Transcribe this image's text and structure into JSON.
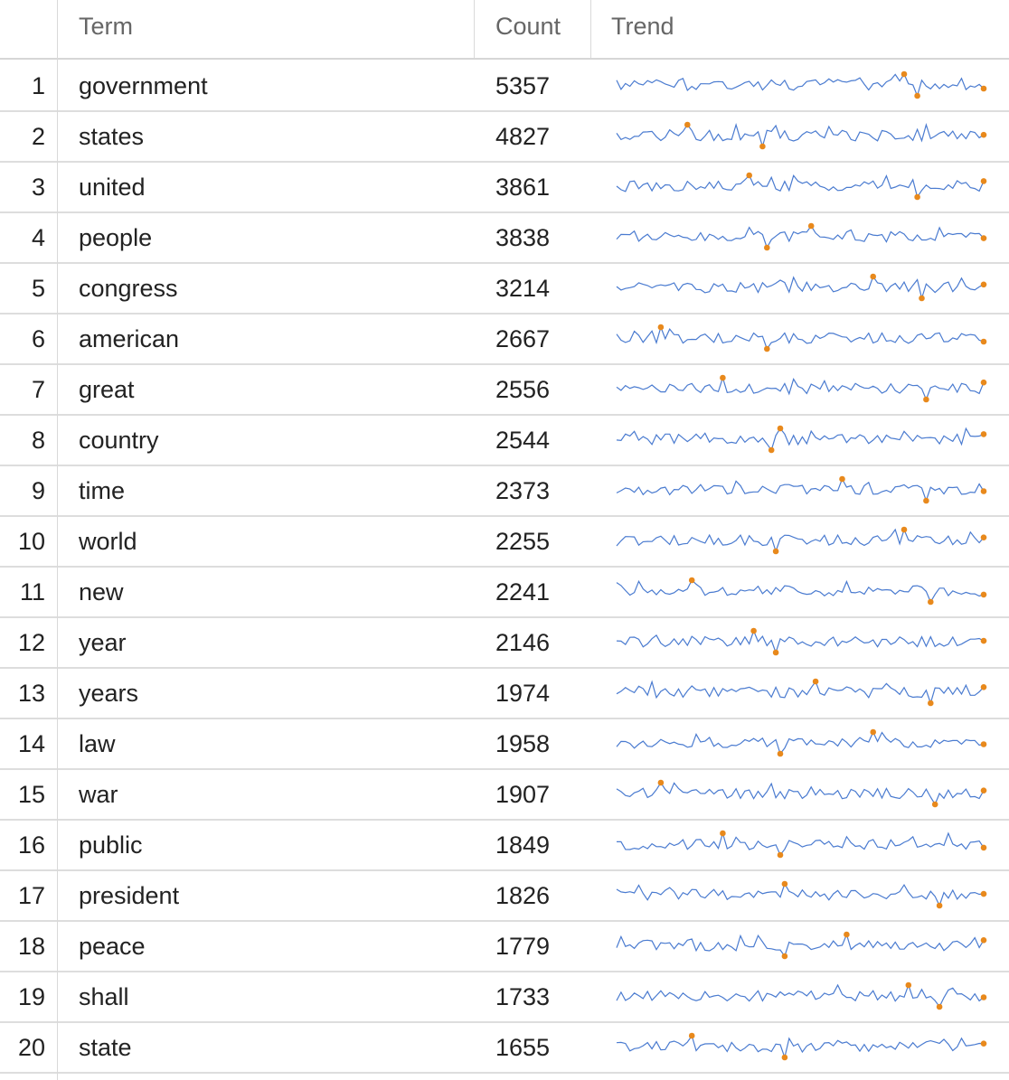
{
  "columns": {
    "index": "",
    "term": "Term",
    "count": "Count",
    "trend": "Trend"
  },
  "colors": {
    "line": "#4a7bd0",
    "marker": "#e8891c"
  },
  "rows": [
    {
      "n": "1",
      "term": "government",
      "count": "5357"
    },
    {
      "n": "2",
      "term": "states",
      "count": "4827"
    },
    {
      "n": "3",
      "term": "united",
      "count": "3861"
    },
    {
      "n": "4",
      "term": "people",
      "count": "3838"
    },
    {
      "n": "5",
      "term": "congress",
      "count": "3214"
    },
    {
      "n": "6",
      "term": "american",
      "count": "2667"
    },
    {
      "n": "7",
      "term": "great",
      "count": "2556"
    },
    {
      "n": "8",
      "term": "country",
      "count": "2544"
    },
    {
      "n": "9",
      "term": "time",
      "count": "2373"
    },
    {
      "n": "10",
      "term": "world",
      "count": "2255"
    },
    {
      "n": "11",
      "term": "new",
      "count": "2241"
    },
    {
      "n": "12",
      "term": "year",
      "count": "2146"
    },
    {
      "n": "13",
      "term": "years",
      "count": "1974"
    },
    {
      "n": "14",
      "term": "law",
      "count": "1958"
    },
    {
      "n": "15",
      "term": "war",
      "count": "1907"
    },
    {
      "n": "16",
      "term": "public",
      "count": "1849"
    },
    {
      "n": "17",
      "term": "president",
      "count": "1826"
    },
    {
      "n": "18",
      "term": "peace",
      "count": "1779"
    },
    {
      "n": "19",
      "term": "shall",
      "count": "1733"
    },
    {
      "n": "20",
      "term": "state",
      "count": "1655"
    }
  ]
}
